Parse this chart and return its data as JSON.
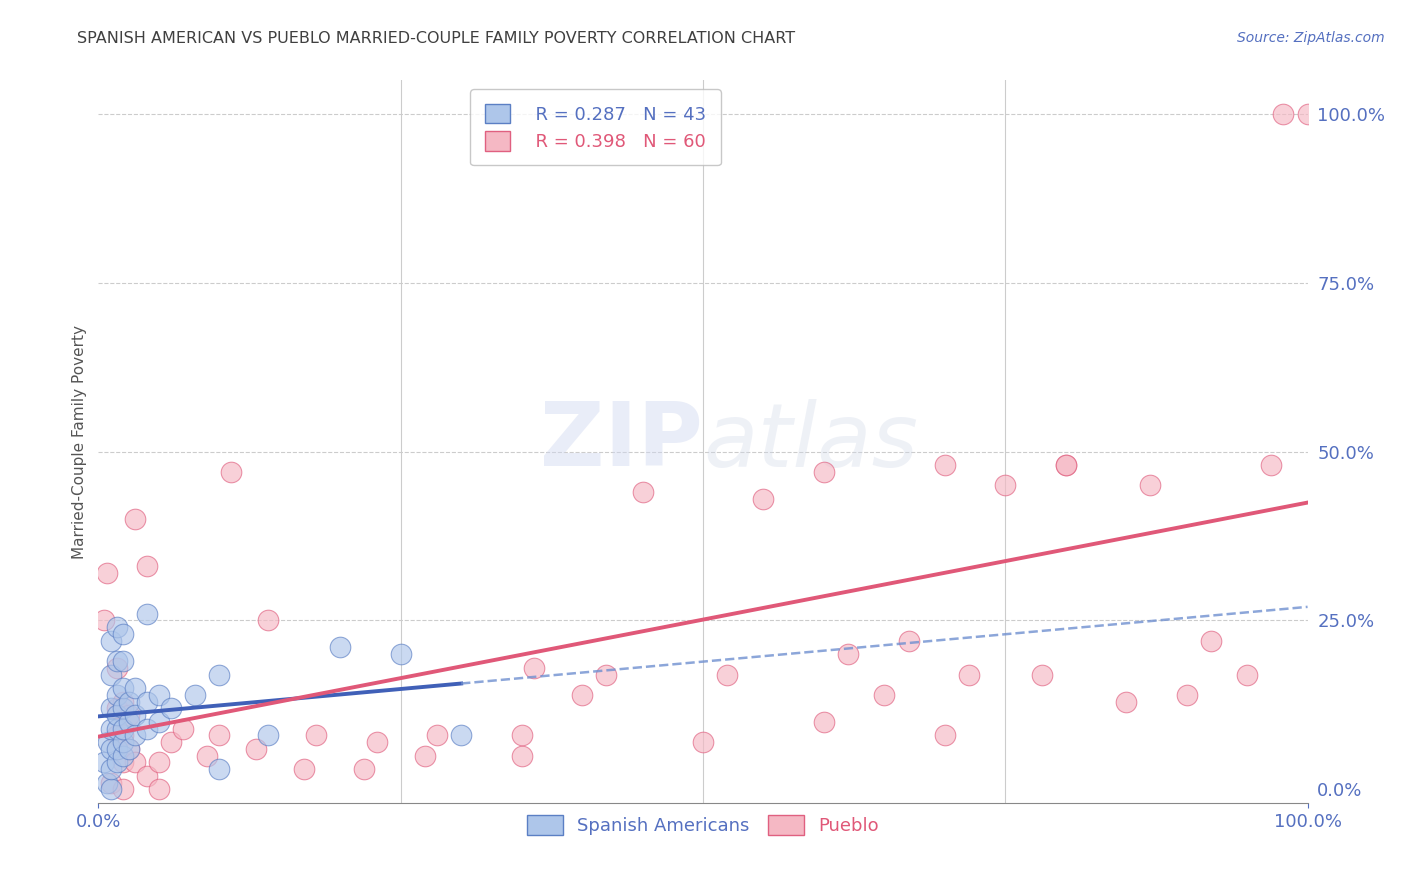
{
  "title": "SPANISH AMERICAN VS PUEBLO MARRIED-COUPLE FAMILY POVERTY CORRELATION CHART",
  "source": "Source: ZipAtlas.com",
  "ylabel": "Married-Couple Family Poverty",
  "xlim": [
    0.0,
    1.0
  ],
  "ylim": [
    -0.02,
    1.05
  ],
  "xtick_positions": [
    0.0,
    1.0
  ],
  "xtick_labels": [
    "0.0%",
    "100.0%"
  ],
  "ytick_values": [
    0.0,
    0.25,
    0.5,
    0.75,
    1.0
  ],
  "ytick_labels": [
    "0.0%",
    "25.0%",
    "50.0%",
    "75.0%",
    "100.0%"
  ],
  "grid_color": "#cccccc",
  "background_color": "#ffffff",
  "blue_color": "#aec6ea",
  "pink_color": "#f5b8c4",
  "blue_edge_color": "#5b7fc4",
  "pink_edge_color": "#e06080",
  "blue_line_color": "#4060b8",
  "pink_line_color": "#e05878",
  "blue_dashed_color": "#7090d0",
  "title_color": "#404040",
  "axis_label_color": "#555555",
  "tick_color": "#5570c0",
  "legend_R_blue": "R = 0.287",
  "legend_N_blue": "N = 43",
  "legend_R_pink": "R = 0.398",
  "legend_N_pink": "N = 60",
  "spanish_x": [
    0.005,
    0.007,
    0.008,
    0.01,
    0.01,
    0.01,
    0.01,
    0.01,
    0.01,
    0.01,
    0.015,
    0.015,
    0.015,
    0.015,
    0.015,
    0.015,
    0.015,
    0.02,
    0.02,
    0.02,
    0.02,
    0.02,
    0.02,
    0.02,
    0.025,
    0.025,
    0.025,
    0.03,
    0.03,
    0.03,
    0.04,
    0.04,
    0.04,
    0.05,
    0.05,
    0.06,
    0.08,
    0.1,
    0.1,
    0.14,
    0.2,
    0.25,
    0.3
  ],
  "spanish_y": [
    0.04,
    0.01,
    0.07,
    0.0,
    0.03,
    0.06,
    0.09,
    0.12,
    0.17,
    0.22,
    0.04,
    0.06,
    0.09,
    0.11,
    0.14,
    0.19,
    0.24,
    0.05,
    0.07,
    0.09,
    0.12,
    0.15,
    0.19,
    0.23,
    0.06,
    0.1,
    0.13,
    0.08,
    0.11,
    0.15,
    0.09,
    0.13,
    0.26,
    0.1,
    0.14,
    0.12,
    0.14,
    0.03,
    0.17,
    0.08,
    0.21,
    0.2,
    0.08
  ],
  "pueblo_x": [
    0.005,
    0.007,
    0.01,
    0.015,
    0.015,
    0.015,
    0.02,
    0.02,
    0.02,
    0.02,
    0.025,
    0.025,
    0.03,
    0.03,
    0.04,
    0.04,
    0.05,
    0.05,
    0.06,
    0.07,
    0.09,
    0.1,
    0.11,
    0.13,
    0.14,
    0.17,
    0.18,
    0.22,
    0.23,
    0.27,
    0.28,
    0.35,
    0.35,
    0.36,
    0.4,
    0.42,
    0.5,
    0.52,
    0.6,
    0.62,
    0.65,
    0.67,
    0.7,
    0.72,
    0.78,
    0.8,
    0.85,
    0.87,
    0.9,
    0.92,
    0.95,
    0.97,
    0.98,
    1.0,
    0.6,
    0.7,
    0.75,
    0.8,
    0.55,
    0.45
  ],
  "pueblo_y": [
    0.25,
    0.32,
    0.01,
    0.08,
    0.12,
    0.18,
    0.04,
    0.08,
    0.13,
    0.0,
    0.06,
    0.11,
    0.04,
    0.4,
    0.02,
    0.33,
    0.04,
    0.0,
    0.07,
    0.09,
    0.05,
    0.08,
    0.47,
    0.06,
    0.25,
    0.03,
    0.08,
    0.03,
    0.07,
    0.05,
    0.08,
    0.05,
    0.08,
    0.18,
    0.14,
    0.17,
    0.07,
    0.17,
    0.1,
    0.2,
    0.14,
    0.22,
    0.08,
    0.17,
    0.17,
    0.48,
    0.13,
    0.45,
    0.14,
    0.22,
    0.17,
    0.48,
    1.0,
    1.0,
    0.47,
    0.48,
    0.45,
    0.48,
    0.43,
    0.44
  ]
}
